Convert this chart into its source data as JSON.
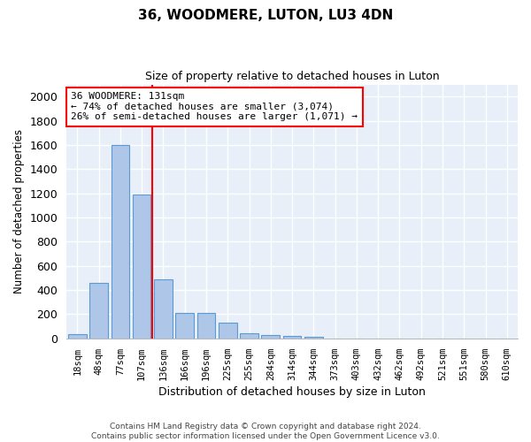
{
  "title": "36, WOODMERE, LUTON, LU3 4DN",
  "subtitle": "Size of property relative to detached houses in Luton",
  "xlabel": "Distribution of detached houses by size in Luton",
  "ylabel": "Number of detached properties",
  "categories": [
    "18sqm",
    "48sqm",
    "77sqm",
    "107sqm",
    "136sqm",
    "166sqm",
    "196sqm",
    "225sqm",
    "255sqm",
    "284sqm",
    "314sqm",
    "344sqm",
    "373sqm",
    "403sqm",
    "432sqm",
    "462sqm",
    "492sqm",
    "521sqm",
    "551sqm",
    "580sqm",
    "610sqm"
  ],
  "values": [
    35,
    460,
    1600,
    1190,
    490,
    210,
    210,
    130,
    45,
    30,
    20,
    15,
    0,
    0,
    0,
    0,
    0,
    0,
    0,
    0,
    0
  ],
  "bar_color": "#aec6e8",
  "bar_edge_color": "#5b9bd5",
  "bg_color": "#e8eff8",
  "grid_color": "#ffffff",
  "vline_x_index": 3.5,
  "vline_color": "red",
  "annotation_text": "36 WOODMERE: 131sqm\n← 74% of detached houses are smaller (3,074)\n26% of semi-detached houses are larger (1,071) →",
  "annotation_box_color": "white",
  "annotation_box_edgecolor": "red",
  "footnote": "Contains HM Land Registry data © Crown copyright and database right 2024.\nContains public sector information licensed under the Open Government Licence v3.0.",
  "ylim": [
    0,
    2100
  ],
  "yticks": [
    0,
    200,
    400,
    600,
    800,
    1000,
    1200,
    1400,
    1600,
    1800,
    2000
  ]
}
